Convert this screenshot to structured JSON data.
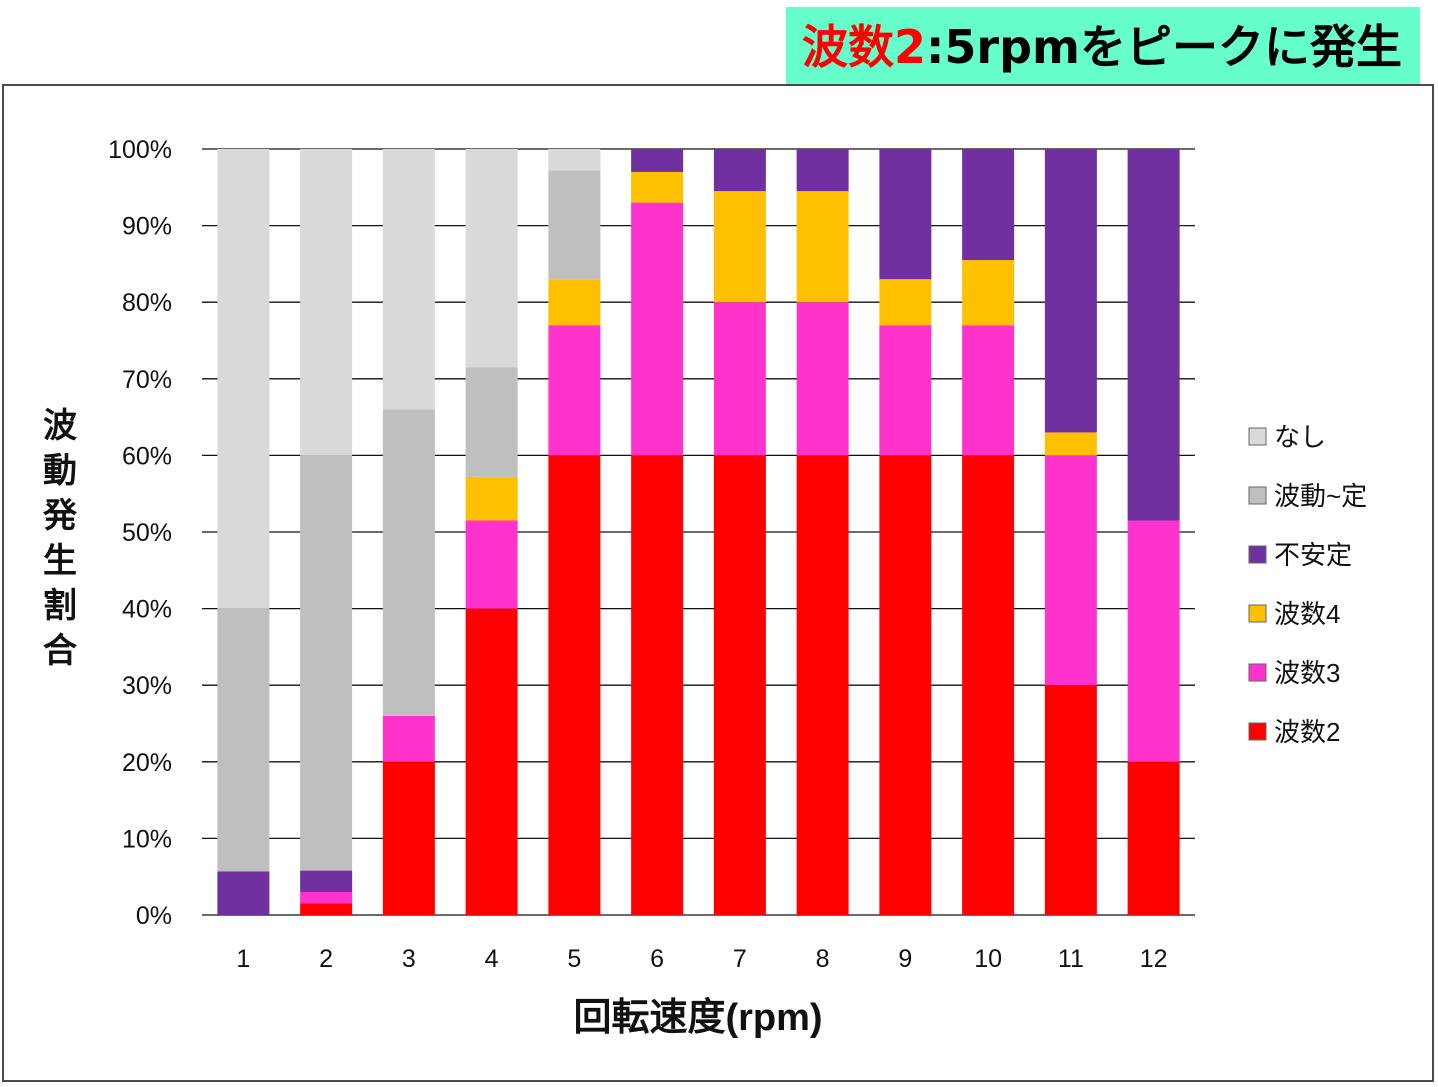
{
  "banner": {
    "highlight": "波数2",
    "rest": ":5rpmをピークに発生"
  },
  "chart_data": {
    "type": "bar",
    "stacked": true,
    "orientation": "vertical",
    "categories": [
      "1",
      "2",
      "3",
      "4",
      "5",
      "6",
      "7",
      "8",
      "9",
      "10",
      "11",
      "12"
    ],
    "xlabel": "回転速度(rpm)",
    "ylabel": "波動発生割合",
    "ylim": [
      0,
      100
    ],
    "yticks": [
      "0%",
      "10%",
      "20%",
      "30%",
      "40%",
      "50%",
      "60%",
      "70%",
      "80%",
      "90%",
      "100%"
    ],
    "grid": true,
    "legend_position": "right",
    "legend_order": [
      "なし",
      "波動~定",
      "不安定",
      "波数4",
      "波数3",
      "波数2"
    ],
    "series": [
      {
        "name": "波数2",
        "color": "#ff0000",
        "values": [
          0,
          1.5,
          20,
          40,
          60,
          60,
          60,
          60,
          60,
          60,
          30,
          20
        ]
      },
      {
        "name": "波数3",
        "color": "#ff33cc",
        "values": [
          0,
          1.5,
          6,
          11.5,
          17,
          33,
          20,
          20,
          17,
          17,
          30,
          31.5
        ]
      },
      {
        "name": "波数4",
        "color": "#ffc000",
        "values": [
          0,
          0,
          0,
          5.7,
          6,
          4,
          14.5,
          14.5,
          6,
          8.5,
          3,
          0
        ]
      },
      {
        "name": "不安定",
        "color": "#7030a0",
        "values": [
          5.7,
          2.8,
          0,
          0,
          0,
          3,
          5.5,
          5.5,
          17,
          14.5,
          37,
          48.5
        ]
      },
      {
        "name": "波動~定",
        "color": "#bfbfbf",
        "values": [
          34.3,
          54.2,
          40,
          14.3,
          14.2,
          0,
          0,
          0,
          0,
          0,
          0,
          0
        ]
      },
      {
        "name": "なし",
        "color": "#d9d9d9",
        "values": [
          60,
          40,
          34,
          28.5,
          2.8,
          0,
          0,
          0,
          0,
          0,
          0,
          0
        ]
      }
    ]
  }
}
